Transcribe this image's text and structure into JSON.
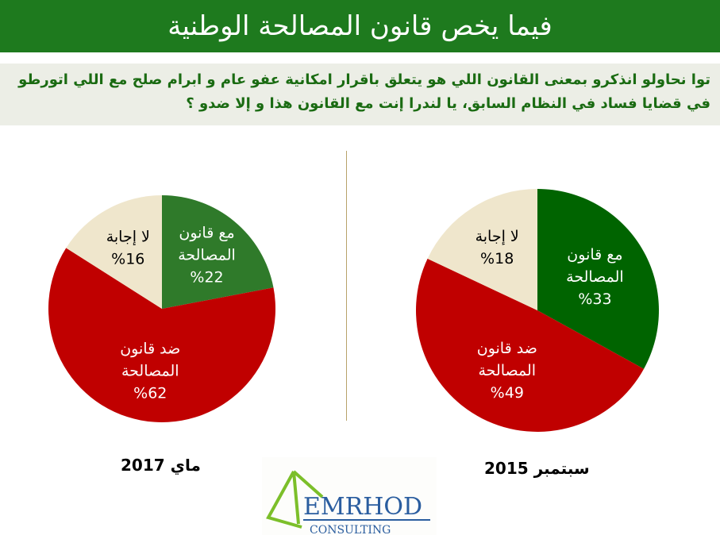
{
  "header": {
    "title": "فيما يخص قانون المصالحة الوطنية"
  },
  "question": "توا نحاولو انذكرو بمعنى القانون اللي هو يتعلق باقرار امكانية عفو عام و ابرام صلح مع اللي اتورطو في قضايا فساد في النظام السابق، يا لندرا إنت مع القانون هذا و إلا ضدو ؟",
  "logo": {
    "name": "EMRHOD",
    "sub": "CONSULTING"
  },
  "chart_data": [
    {
      "type": "pie",
      "title": "ماي 2017",
      "slices": [
        {
          "label": "مع قانون المصالحة",
          "line1": "مع قانون",
          "line2": "المصالحة",
          "value": 22,
          "text": "%22",
          "color": "#2f7a2a"
        },
        {
          "label": "ضد قانون المصالحة",
          "line1": "ضد قانون",
          "line2": "المصالحة",
          "value": 62,
          "text": "%62",
          "color": "#c00000"
        },
        {
          "label": "لا إجابة",
          "line1": "لا إجابة",
          "line2": "",
          "value": 16,
          "text": "%16",
          "color": "#efe6cc"
        }
      ]
    },
    {
      "type": "pie",
      "title": "سبتمبر 2015",
      "slices": [
        {
          "label": "مع قانون المصالحة",
          "line1": "مع قانون",
          "line2": "المصالحة",
          "value": 33,
          "text": "%33",
          "color": "#006400"
        },
        {
          "label": "ضد قانون المصالحة",
          "line1": "ضد قانون",
          "line2": "المصالحة",
          "value": 49,
          "text": "%49",
          "color": "#c00000"
        },
        {
          "label": "لا إجابة",
          "line1": "لا إجابة",
          "line2": "",
          "value": 18,
          "text": "%18",
          "color": "#efe6cc"
        }
      ]
    }
  ]
}
